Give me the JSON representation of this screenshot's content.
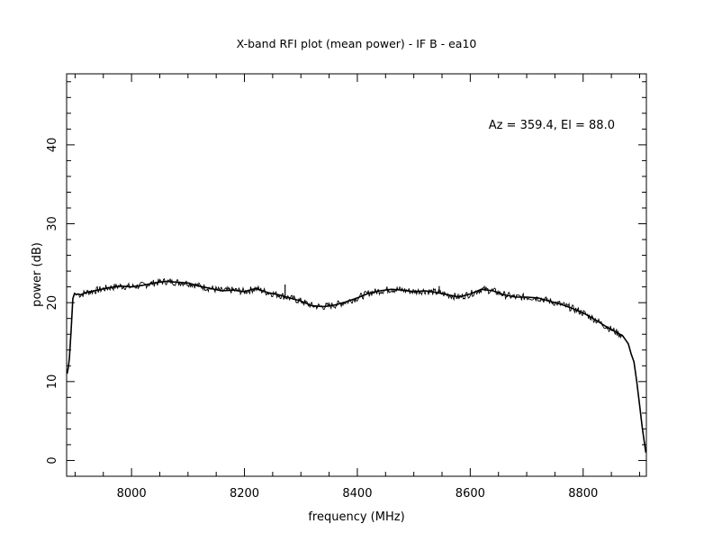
{
  "chart_data": {
    "type": "line",
    "title": "X-band RFI plot (mean power) - IF B - ea10",
    "xlabel": "frequency (MHz)",
    "ylabel": "power (dB)",
    "annotation": "Az = 359.4, El = 88.0",
    "xlim": [
      7885,
      8912
    ],
    "ylim": [
      -2,
      49
    ],
    "x_ticks": [
      8000,
      8200,
      8400,
      8600,
      8800
    ],
    "x_minor_step": 50,
    "y_ticks": [
      0,
      10,
      20,
      30,
      40
    ],
    "y_minor_step": 2,
    "grid": false,
    "line_color": "#000000",
    "series": [
      {
        "x": [
          7886,
          7888,
          7890,
          7893,
          7896,
          7899,
          7902,
          7905,
          7910,
          7920,
          7940,
          7960,
          7980,
          8000,
          8020,
          8040,
          8060,
          8080,
          8100,
          8120,
          8140,
          8160,
          8180,
          8200,
          8220,
          8240,
          8260,
          8280,
          8300,
          8320,
          8340,
          8360,
          8380,
          8400,
          8420,
          8440,
          8460,
          8480,
          8500,
          8520,
          8540,
          8560,
          8580,
          8600,
          8620,
          8640,
          8660,
          8680,
          8700,
          8720,
          8740,
          8760,
          8780,
          8800,
          8820,
          8840,
          8860,
          8870,
          8875,
          8880,
          8885,
          8890,
          8895,
          8900,
          8905,
          8908,
          8911
        ],
        "y": [
          11.0,
          11.8,
          13.0,
          16.5,
          20.5,
          21.2,
          21.0,
          21.1,
          21.0,
          21.3,
          21.6,
          21.9,
          22.1,
          22.0,
          22.2,
          22.5,
          22.7,
          22.6,
          22.5,
          22.1,
          21.8,
          21.5,
          21.6,
          21.4,
          21.8,
          21.3,
          21.0,
          20.6,
          20.2,
          19.6,
          19.5,
          19.7,
          20.1,
          20.6,
          21.2,
          21.5,
          21.7,
          21.6,
          21.4,
          21.5,
          21.3,
          21.0,
          20.7,
          21.1,
          21.7,
          21.5,
          21.0,
          20.7,
          20.7,
          20.6,
          20.2,
          19.8,
          19.3,
          18.7,
          17.9,
          17.0,
          16.2,
          15.8,
          15.3,
          14.8,
          13.5,
          12.5,
          10.0,
          7.0,
          4.0,
          2.5,
          1.0
        ]
      }
    ],
    "spikes": [
      {
        "x": 8272,
        "y": 22.3
      },
      {
        "x": 8545,
        "y": 22.1
      },
      {
        "x": 8736,
        "y": 20.6
      }
    ]
  }
}
